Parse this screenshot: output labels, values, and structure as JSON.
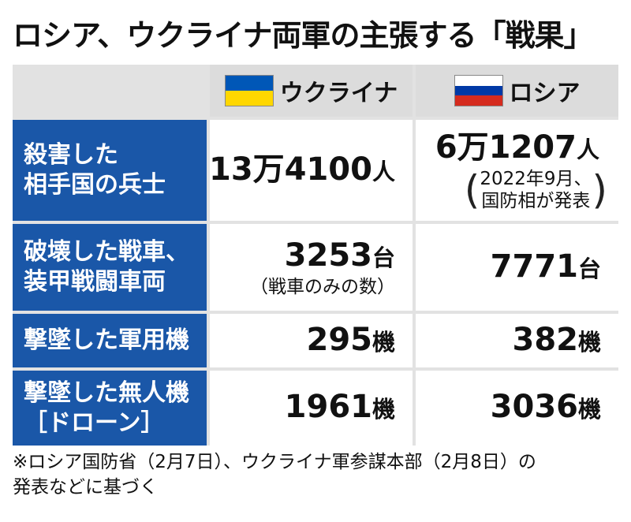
{
  "title": "ロシア、ウクライナ両軍の主張する「戦果」",
  "columns": [
    {
      "label": "ウクライナ",
      "flag": [
        "#0057b7",
        "#ffd700"
      ]
    },
    {
      "label": "ロシア",
      "flag": [
        "#ffffff",
        "#0039a6",
        "#d52b1e"
      ]
    }
  ],
  "rows": [
    {
      "label": [
        "殺害した",
        "相手国の兵士"
      ],
      "ukraine": {
        "num": "13万4100",
        "unit": "人"
      },
      "russia": {
        "num": "6万1207",
        "unit": "人",
        "note": [
          "2022年9月、",
          "国防相が発表"
        ]
      }
    },
    {
      "label": [
        "破壊した戦車、",
        "装甲戦闘車両"
      ],
      "ukraine": {
        "num": "3253",
        "unit": "台",
        "note": "（戦車のみの数）"
      },
      "russia": {
        "num": "7771",
        "unit": "台"
      }
    },
    {
      "label": [
        "撃墜した軍用機"
      ],
      "ukraine": {
        "num": "295",
        "unit": "機"
      },
      "russia": {
        "num": "382",
        "unit": "機"
      }
    },
    {
      "label": [
        "撃墜した無人機",
        "［ドローン］"
      ],
      "ukraine": {
        "num": "1961",
        "unit": "機"
      },
      "russia": {
        "num": "3036",
        "unit": "機"
      }
    }
  ],
  "footnote": [
    "※ロシア国防省（2月7日）、ウクライナ軍参謀本部（2月8日）の",
    "発表などに基づく"
  ]
}
